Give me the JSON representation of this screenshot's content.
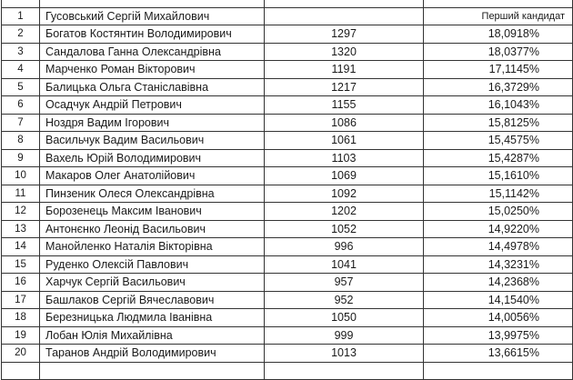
{
  "rows": [
    {
      "n": "1",
      "name": "Гусовський Сергій Михайлович",
      "votes": "",
      "pct": "",
      "note": "Перший кандидат"
    },
    {
      "n": "2",
      "name": "Богатов Костянтин Володимирович",
      "votes": "1297",
      "pct": "18,0918%"
    },
    {
      "n": "3",
      "name": "Сандалова Ганна Олександрівна",
      "votes": "1320",
      "pct": "18,0377%"
    },
    {
      "n": "4",
      "name": "Марченко Роман Вікторович",
      "votes": "1191",
      "pct": "17,1145%"
    },
    {
      "n": "5",
      "name": "Балицька Ольга Станіславівна",
      "votes": "1217",
      "pct": "16,3729%"
    },
    {
      "n": "6",
      "name": "Осадчук Андрій Петрович",
      "votes": "1155",
      "pct": "16,1043%"
    },
    {
      "n": "7",
      "name": "Ноздря Вадим Ігорович",
      "votes": "1086",
      "pct": "15,8125%"
    },
    {
      "n": "8",
      "name": "Васильчук Вадим Васильович",
      "votes": "1061",
      "pct": "15,4575%"
    },
    {
      "n": "9",
      "name": "Вахель Юрій Володимирович",
      "votes": "1103",
      "pct": "15,4287%"
    },
    {
      "n": "10",
      "name": "Макаров Олег Анатолійович",
      "votes": "1069",
      "pct": "15,1610%"
    },
    {
      "n": "11",
      "name": "Пинзеник Олеся Олександрівна",
      "votes": "1092",
      "pct": "15,1142%"
    },
    {
      "n": "12",
      "name": "Борозенець Максим Іванович",
      "votes": "1202",
      "pct": "15,0250%"
    },
    {
      "n": "13",
      "name": "Антонєнко Леонід Васильович",
      "votes": "1052",
      "pct": "14,9220%"
    },
    {
      "n": "14",
      "name": "Манойленко Наталія Вікторівна",
      "votes": "996",
      "pct": "14,4978%"
    },
    {
      "n": "15",
      "name": "Руденко Олексій Павлович",
      "votes": "1041",
      "pct": "14,3231%"
    },
    {
      "n": "16",
      "name": "Харчук Сергій Васильович",
      "votes": "957",
      "pct": "14,2368%"
    },
    {
      "n": "17",
      "name": "Башлаков Сергій Вячеславович",
      "votes": "952",
      "pct": "14,1540%"
    },
    {
      "n": "18",
      "name": "Березницька Людмила Іванівна",
      "votes": "1050",
      "pct": "14,0056%"
    },
    {
      "n": "19",
      "name": "Лобан Юлія Михайлівна",
      "votes": "999",
      "pct": "13,9975%"
    },
    {
      "n": "20",
      "name": "Таранов Андрій Володимирович",
      "votes": "1013",
      "pct": "13,6615%"
    }
  ]
}
